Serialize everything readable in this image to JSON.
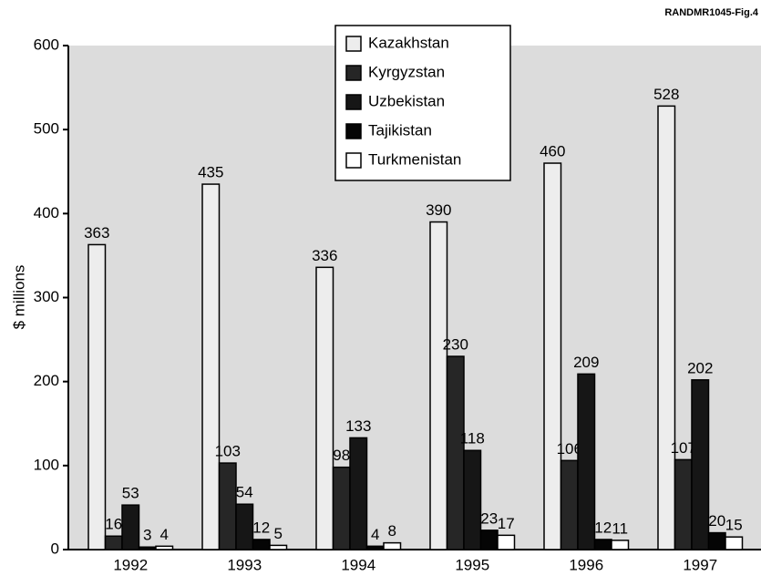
{
  "chart_data": {
    "type": "bar",
    "annotation": "RANDMR1045-Fig.4",
    "y_label": "$ millions",
    "categories": [
      "1992",
      "1993",
      "1994",
      "1995",
      "1996",
      "1997"
    ],
    "series": [
      {
        "name": "Kazakhstan",
        "color": "#ededed",
        "values": [
          363,
          435,
          336,
          390,
          460,
          528
        ]
      },
      {
        "name": "Kyrgyzstan",
        "color": "#262626",
        "values": [
          16,
          103,
          98,
          230,
          106,
          107
        ]
      },
      {
        "name": "Uzbekistan",
        "color": "#161616",
        "values": [
          53,
          54,
          133,
          118,
          209,
          202
        ]
      },
      {
        "name": "Tajikistan",
        "color": "#050505",
        "values": [
          3,
          12,
          4,
          23,
          12,
          20
        ]
      },
      {
        "name": "Turkmenistan",
        "color": "#ffffff",
        "values": [
          4,
          5,
          8,
          17,
          11,
          15
        ]
      }
    ],
    "ylim": [
      0,
      600
    ],
    "yticks": [
      0,
      100,
      200,
      300,
      400,
      500,
      600
    ],
    "legend": "top-center",
    "grid": false
  }
}
